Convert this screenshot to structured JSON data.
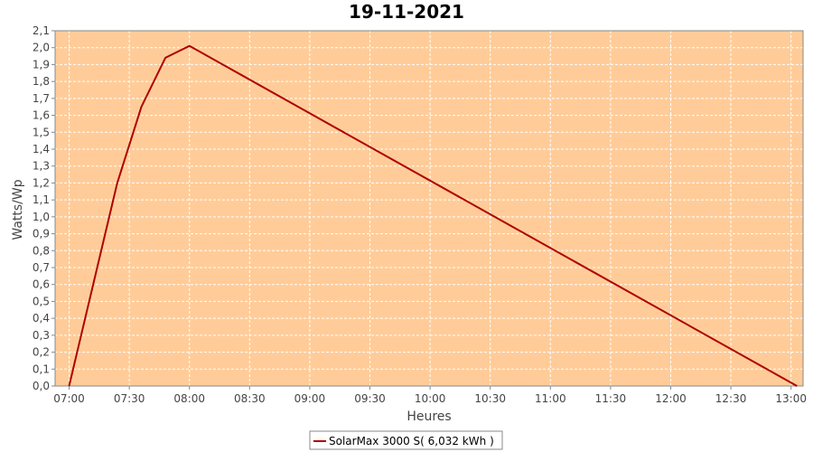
{
  "chart_data": {
    "type": "line",
    "title": "19-11-2021",
    "xlabel": "Heures",
    "ylabel": "Watts/Wp",
    "x_ticks": [
      "07:00",
      "07:30",
      "08:00",
      "08:30",
      "09:00",
      "09:30",
      "10:00",
      "10:30",
      "11:00",
      "11:30",
      "12:00",
      "12:30",
      "13:00"
    ],
    "y_ticks": [
      "0,0",
      "0,1",
      "0,2",
      "0,3",
      "0,4",
      "0,5",
      "0,6",
      "0,7",
      "0,8",
      "0,9",
      "1,0",
      "1,1",
      "1,2",
      "1,3",
      "1,4",
      "1,5",
      "1,6",
      "1,7",
      "1,8",
      "1,9",
      "2,0",
      "2,1"
    ],
    "xlim": [
      "06:53",
      "13:06"
    ],
    "ylim": [
      0,
      2.1
    ],
    "grid": true,
    "legend_position": "bottom",
    "colors": {
      "plot_background": "#FFCC99",
      "line": "#B00000",
      "grid": "#FFFFFF"
    },
    "series": [
      {
        "name": "SolarMax 3000 S( 6,032 kWh )",
        "x": [
          "07:00",
          "07:24",
          "07:36",
          "07:48",
          "08:00",
          "13:03"
        ],
        "y": [
          0.0,
          1.2,
          1.65,
          1.94,
          2.01,
          0.0
        ]
      }
    ]
  }
}
